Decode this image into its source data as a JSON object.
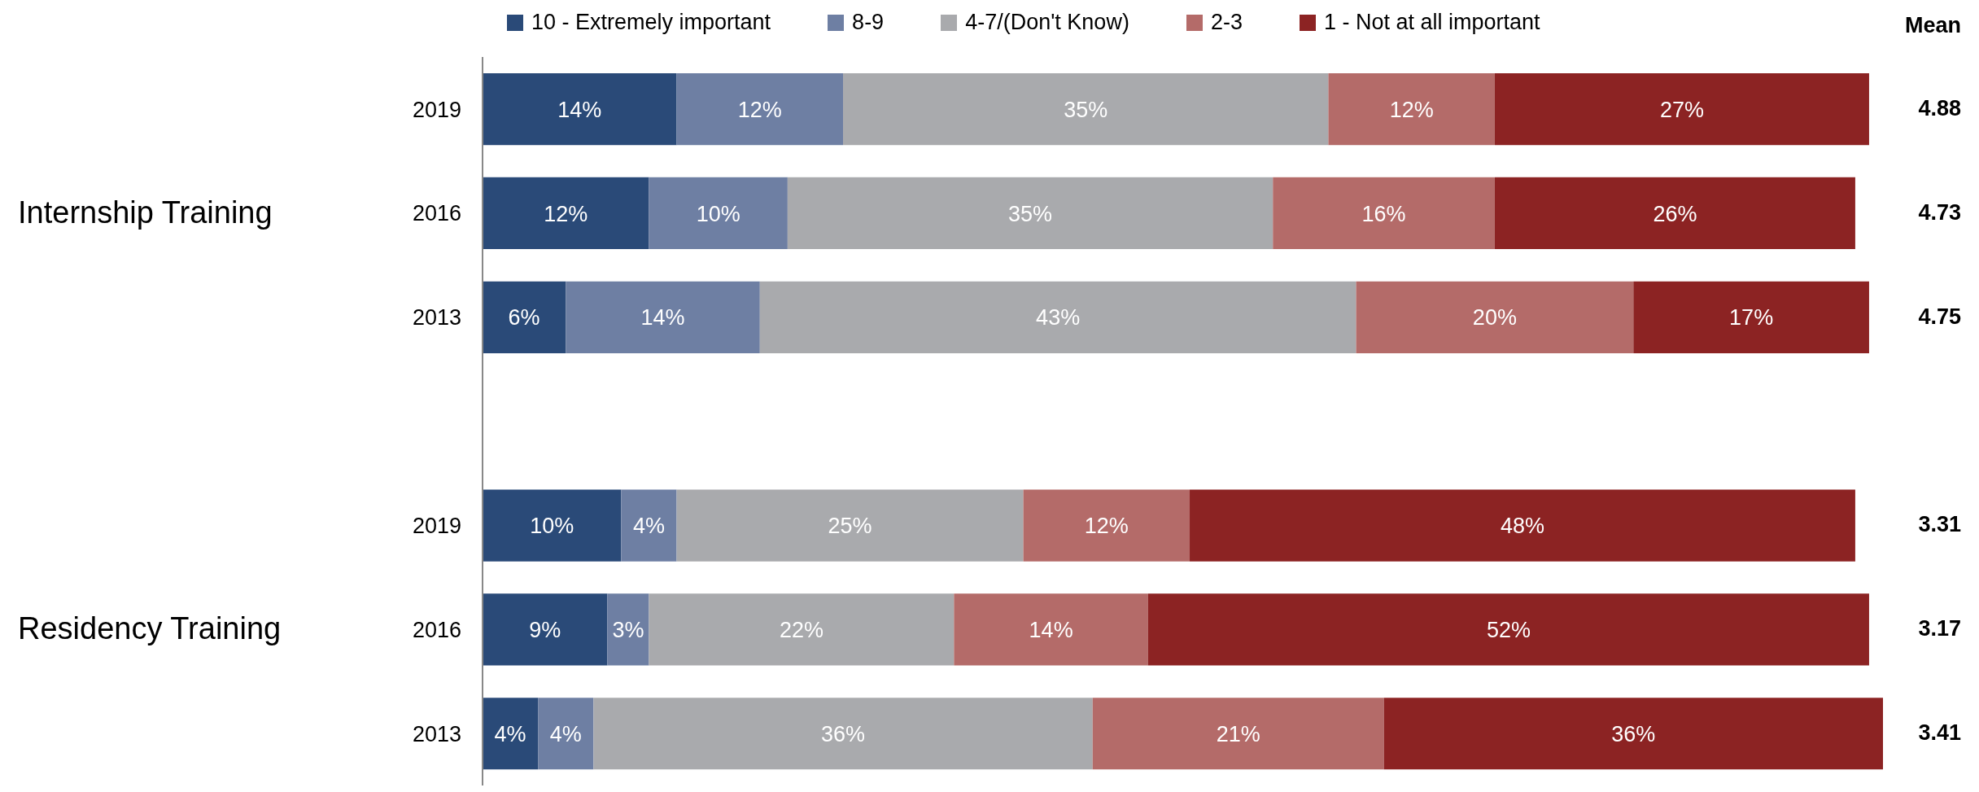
{
  "chart_data": {
    "type": "bar",
    "orientation": "horizontal",
    "stacked": true,
    "legend": "top",
    "tick_labels": "y",
    "grid": false,
    "categories": [
      "2019",
      "2016",
      "2013",
      null,
      "2019",
      "2016",
      "2013"
    ],
    "xlim": [
      0,
      101
    ],
    "series": [
      {
        "name": "10 - Extremely important",
        "color": "#2a4a78",
        "values": [
          14,
          12,
          6,
          null,
          10,
          9,
          4
        ],
        "value_labels": [
          "14%",
          "12%",
          "6%",
          null,
          "10%",
          "9%",
          "4%"
        ]
      },
      {
        "name": "8-9",
        "color": "#6e7fa3",
        "values": [
          12,
          10,
          14,
          null,
          4,
          3,
          4
        ],
        "value_labels": [
          "12%",
          "10%",
          "14%",
          null,
          "4%",
          "3%",
          "4%"
        ]
      },
      {
        "name": "4-7/(Don't Know)",
        "color": "#a9aaad",
        "values": [
          35,
          35,
          43,
          null,
          25,
          22,
          36
        ],
        "value_labels": [
          "35%",
          "35%",
          "43%",
          null,
          "25%",
          "22%",
          "36%"
        ]
      },
      {
        "name": "2-3",
        "color": "#b46b69",
        "values": [
          12,
          16,
          20,
          null,
          12,
          14,
          21
        ],
        "value_labels": [
          "12%",
          "16%",
          "20%",
          null,
          "12%",
          "14%",
          "21%"
        ]
      },
      {
        "name": "1 - Not at all important",
        "color": "#8c2323",
        "values": [
          27,
          26,
          17,
          null,
          48,
          52,
          36
        ],
        "value_labels": [
          "27%",
          "26%",
          "17%",
          null,
          "48%",
          "52%",
          "36%"
        ]
      }
    ],
    "annotations": [
      "Internship Training",
      "Residency Training",
      "Mean",
      "4.88",
      "4.73",
      "4.75",
      "3.31",
      "3.17",
      "3.41"
    ]
  }
}
